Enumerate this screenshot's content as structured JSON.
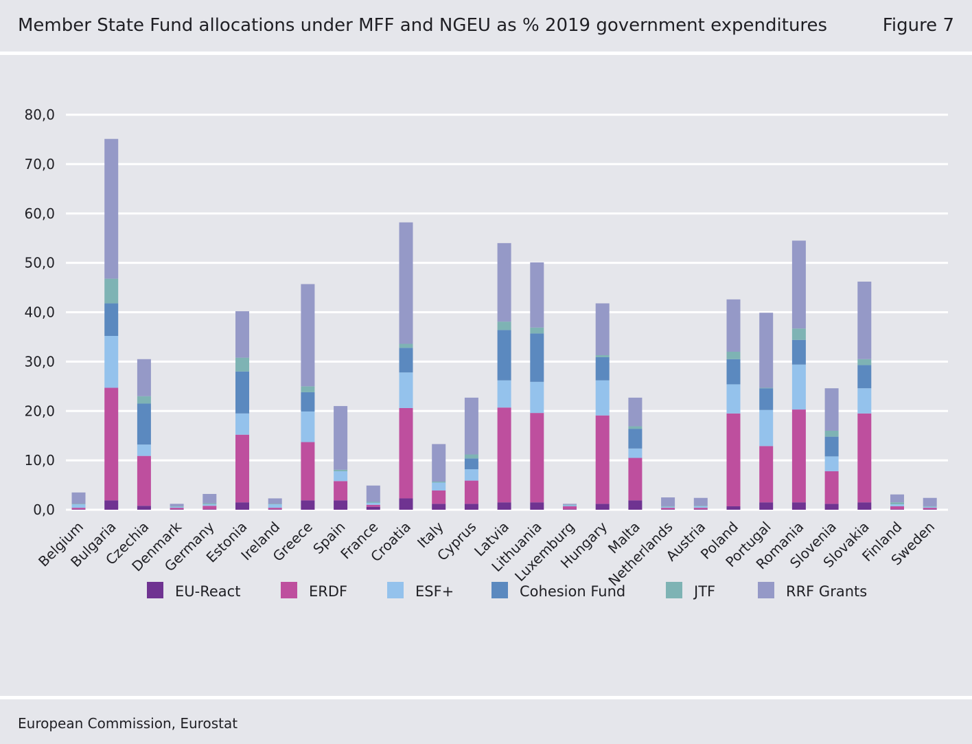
{
  "header": {
    "title": "Member State Fund allocations under MFF and NGEU as % 2019 government expenditures",
    "figure": "Figure 7"
  },
  "source": "European Commission, Eurostat",
  "colors": {
    "background": "#e5e6eb",
    "gridline": "#ffffff"
  },
  "chart_data": {
    "type": "bar",
    "stacked": true,
    "title": "Member State Fund allocations under MFF and NGEU as % 2019 government expenditures",
    "xlabel": "",
    "ylabel": "",
    "ylim": [
      0,
      80
    ],
    "yticks": [
      0,
      10,
      20,
      30,
      40,
      50,
      60,
      70,
      80
    ],
    "ytick_labels": [
      "0,0",
      "10,0",
      "20,0",
      "30,0",
      "40,0",
      "50,0",
      "60,0",
      "70,0",
      "80,0"
    ],
    "grid": true,
    "legend_position": "bottom",
    "categories": [
      "Belgium",
      "Bulgaria",
      "Czechia",
      "Denmark",
      "Germany",
      "Estonia",
      "Ireland",
      "Greece",
      "Spain",
      "France",
      "Croatia",
      "Italy",
      "Cyprus",
      "Latvia",
      "Lithuania",
      "Luxemburg",
      "Hungary",
      "Malta",
      "Netherlands",
      "Austria",
      "Poland",
      "Portugal",
      "Romania",
      "Slovenia",
      "Slovakia",
      "Finland",
      "Sweden"
    ],
    "series": [
      {
        "name": "EU-React",
        "color": "#6f3391",
        "values": [
          0.1,
          1.9,
          0.8,
          0.1,
          0.1,
          1.5,
          0.1,
          1.9,
          1.9,
          0.6,
          2.3,
          1.2,
          1.2,
          1.5,
          1.5,
          0.1,
          1.2,
          1.9,
          0.1,
          0.1,
          0.7,
          1.5,
          1.5,
          1.2,
          1.5,
          0.1,
          0.1
        ]
      },
      {
        "name": "ERDF",
        "color": "#be4f9e",
        "values": [
          0.3,
          22.8,
          10.1,
          0.3,
          0.7,
          13.7,
          0.3,
          11.8,
          3.9,
          0.4,
          18.3,
          2.7,
          4.7,
          19.2,
          18.1,
          0.6,
          17.9,
          8.6,
          0.3,
          0.3,
          18.8,
          11.4,
          18.8,
          6.6,
          18.0,
          0.6,
          0.3
        ]
      },
      {
        "name": "ESF+",
        "color": "#94c2ec",
        "values": [
          0.7,
          10.5,
          2.3,
          0.2,
          0.3,
          4.3,
          0.7,
          6.2,
          2.0,
          0.4,
          7.2,
          1.6,
          2.3,
          5.5,
          6.3,
          0.2,
          7.1,
          1.9,
          0.2,
          0.3,
          5.9,
          7.3,
          9.1,
          3.0,
          5.1,
          0.4,
          0.2
        ]
      },
      {
        "name": "Cohesion Fund",
        "color": "#5b89bf",
        "values": [
          0,
          6.6,
          8.3,
          0,
          0,
          8.5,
          0,
          3.9,
          0,
          0,
          5.0,
          0,
          2.2,
          10.2,
          9.8,
          0,
          4.7,
          4.0,
          0,
          0,
          5.1,
          4.4,
          5.0,
          4.0,
          4.7,
          0,
          0
        ]
      },
      {
        "name": "JTF",
        "color": "#7eb3b4",
        "values": [
          0.1,
          5.0,
          1.5,
          0.1,
          0.2,
          2.8,
          0.1,
          1.2,
          0.3,
          0.2,
          0.8,
          0.2,
          0.8,
          1.7,
          1.2,
          0.1,
          0.4,
          0.5,
          0.1,
          0.1,
          1.5,
          0.1,
          2.3,
          1.2,
          1.2,
          0.4,
          0.1
        ]
      },
      {
        "name": "RRF Grants",
        "color": "#9599c7",
        "values": [
          2.3,
          28.3,
          7.5,
          0.5,
          1.9,
          9.4,
          1.1,
          20.7,
          12.9,
          3.3,
          24.6,
          7.6,
          11.5,
          15.9,
          13.2,
          0.2,
          10.5,
          5.8,
          1.8,
          1.6,
          10.6,
          15.2,
          17.8,
          8.6,
          15.7,
          1.6,
          1.7
        ]
      }
    ]
  }
}
